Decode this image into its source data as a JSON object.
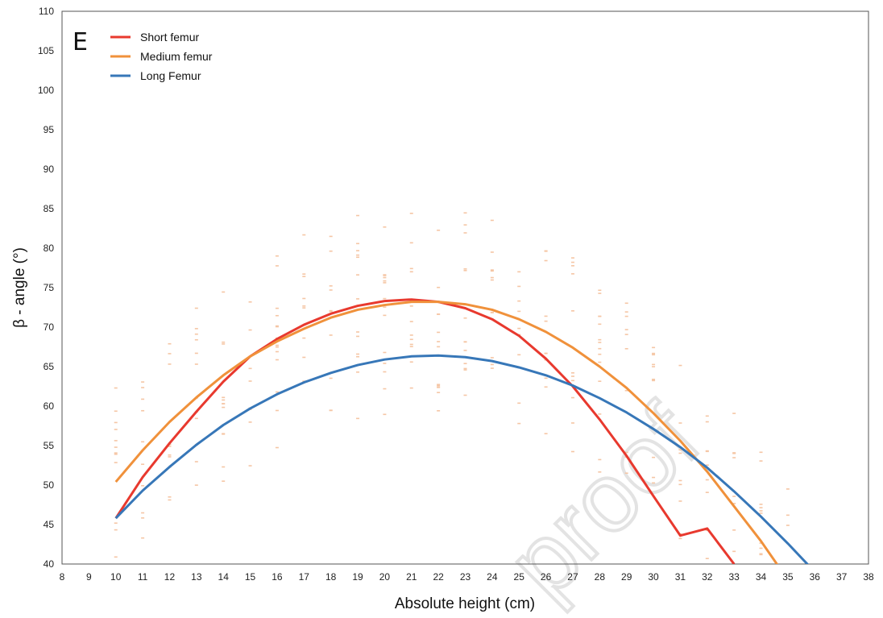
{
  "chart_data": {
    "type": "scatter",
    "panel_label": "E",
    "xlabel": "Absolute height (cm)",
    "ylabel": "β  - angle (°)",
    "xlim": [
      8,
      38
    ],
    "ylim": [
      40,
      110
    ],
    "x_ticks": [
      8,
      9,
      10,
      11,
      12,
      13,
      14,
      15,
      16,
      17,
      18,
      19,
      20,
      21,
      22,
      23,
      24,
      25,
      26,
      27,
      28,
      29,
      30,
      31,
      32,
      33,
      34,
      35,
      36,
      37,
      38
    ],
    "y_ticks": [
      40,
      45,
      50,
      55,
      60,
      65,
      70,
      75,
      80,
      85,
      90,
      95,
      100,
      105,
      110
    ],
    "grid": false,
    "legend_position": "top-left",
    "watermark": "proof",
    "scatter_color": "#f5c6a5",
    "series": [
      {
        "name": "Short femur",
        "color": "#e8392e",
        "x": [
          10,
          11,
          12,
          13,
          14,
          15,
          16,
          17,
          18,
          19,
          20,
          21,
          22,
          23,
          24,
          25,
          26,
          27,
          28,
          29,
          30,
          31,
          32,
          33
        ],
        "y": [
          45.8,
          51.0,
          55.3,
          59.3,
          63.1,
          66.3,
          68.5,
          70.3,
          71.7,
          72.7,
          73.3,
          73.5,
          73.2,
          72.4,
          71.0,
          68.9,
          66.0,
          62.5,
          58.3,
          53.7,
          48.6,
          43.6,
          44.5,
          40.0
        ]
      },
      {
        "name": "Medium femur",
        "color": "#f0913b",
        "x": [
          10,
          11,
          12,
          13,
          14,
          15,
          16,
          17,
          18,
          19,
          20,
          21,
          22,
          23,
          24,
          25,
          26,
          27,
          28,
          29,
          30,
          31,
          32,
          33,
          34,
          35
        ],
        "y": [
          50.4,
          54.4,
          58.0,
          61.1,
          63.9,
          66.3,
          68.2,
          69.8,
          71.2,
          72.2,
          72.8,
          73.2,
          73.2,
          72.9,
          72.2,
          71.0,
          69.4,
          67.4,
          65.0,
          62.3,
          59.1,
          55.6,
          51.7,
          47.3,
          42.9,
          38.0
        ]
      },
      {
        "name": "Long Femur",
        "color": "#3777b8",
        "x": [
          10,
          11,
          12,
          13,
          14,
          15,
          16,
          17,
          18,
          19,
          20,
          21,
          22,
          23,
          24,
          25,
          26,
          27,
          28,
          29,
          30,
          31,
          32,
          33,
          34,
          35,
          36
        ],
        "y": [
          45.8,
          49.3,
          52.3,
          55.1,
          57.6,
          59.7,
          61.5,
          63.0,
          64.2,
          65.2,
          65.9,
          66.3,
          66.4,
          66.2,
          65.7,
          64.9,
          63.9,
          62.6,
          61.0,
          59.2,
          57.1,
          54.8,
          52.2,
          49.2,
          46.0,
          42.6,
          39.0
        ]
      }
    ]
  }
}
